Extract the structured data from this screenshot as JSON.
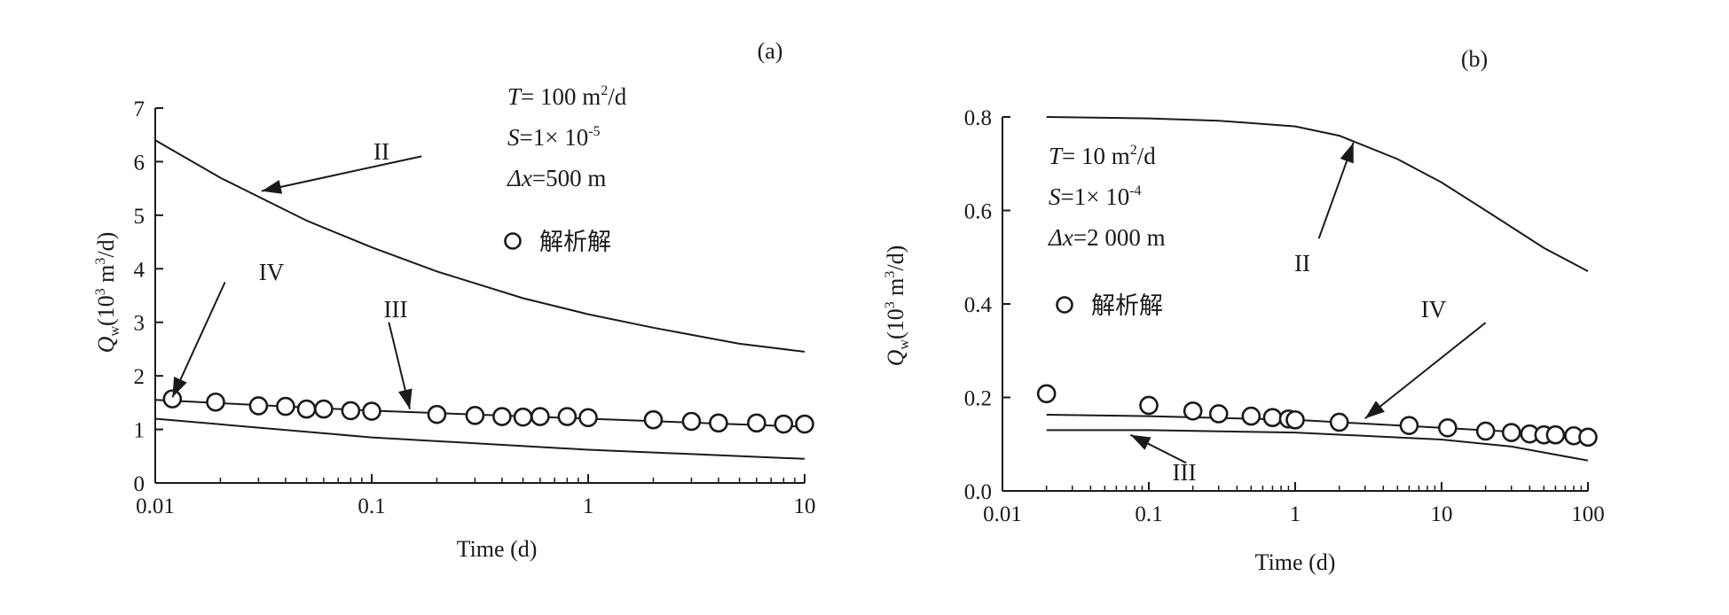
{
  "chart_data": [
    {
      "type": "line",
      "panel_label": "(a)",
      "x_scale": "log",
      "xlim": [
        0.01,
        10
      ],
      "ylim": [
        0,
        7
      ],
      "xticks": [
        0.01,
        0.1,
        1,
        10
      ],
      "xtick_labels": [
        "0.01",
        "0.1",
        "1",
        "10"
      ],
      "yticks": [
        0,
        1,
        2,
        3,
        4,
        5,
        6,
        7
      ],
      "ytick_labels": [
        "0",
        "1",
        "2",
        "3",
        "4",
        "5",
        "6",
        "7"
      ],
      "xlabel": "Time (d)",
      "ylabel": {
        "symbol": "Q",
        "sub": "w",
        "pre": "(10",
        "sup": "3",
        "mid": " m",
        "sup2": "3",
        "post": "/d)"
      },
      "params": [
        {
          "var": "T",
          "text": "= 100 m",
          "sup": "2",
          "tail": "/d"
        },
        {
          "var": "S",
          "text": "=1× 10",
          "sup": "-5",
          "tail": ""
        },
        {
          "var": "Δx",
          "text": "=500 m",
          "sup": "",
          "tail": ""
        }
      ],
      "legend": "解析解",
      "series": [
        {
          "name": "II",
          "x": [
            0.01,
            0.02,
            0.05,
            0.1,
            0.2,
            0.5,
            1,
            2,
            5,
            10
          ],
          "y": [
            6.4,
            5.7,
            4.9,
            4.4,
            3.95,
            3.45,
            3.15,
            2.9,
            2.6,
            2.45
          ]
        },
        {
          "name": "IV",
          "x": [
            0.01,
            0.1,
            1,
            10
          ],
          "y": [
            1.55,
            1.35,
            1.2,
            1.05
          ]
        },
        {
          "name": "III",
          "x": [
            0.01,
            0.1,
            1,
            10
          ],
          "y": [
            1.2,
            0.85,
            0.62,
            0.45
          ]
        }
      ],
      "points": {
        "x": [
          0.012,
          0.019,
          0.03,
          0.04,
          0.05,
          0.06,
          0.08,
          0.1,
          0.2,
          0.3,
          0.4,
          0.5,
          0.6,
          0.8,
          1.0,
          2.0,
          3.0,
          4.0,
          6.0,
          8.0,
          10.0
        ],
        "y": [
          1.57,
          1.51,
          1.44,
          1.43,
          1.38,
          1.38,
          1.35,
          1.34,
          1.28,
          1.26,
          1.24,
          1.23,
          1.24,
          1.24,
          1.22,
          1.18,
          1.15,
          1.12,
          1.12,
          1.1,
          1.1
        ]
      },
      "arrows": [
        {
          "label": "II",
          "tail_x": 0.17,
          "tail_y": 6.1,
          "head_x": 0.031,
          "head_y": 5.45
        },
        {
          "label": "IV",
          "tail_x": 0.021,
          "tail_y": 3.75,
          "head_x": 0.012,
          "head_y": 1.6
        },
        {
          "label": "III",
          "tail_x": 0.12,
          "tail_y": 3.0,
          "head_x": 0.15,
          "head_y": 1.38
        }
      ]
    },
    {
      "type": "line",
      "panel_label": "(b)",
      "x_scale": "log",
      "xlim": [
        0.01,
        100
      ],
      "ylim": [
        0.0,
        0.8
      ],
      "xticks": [
        0.01,
        0.1,
        1,
        10,
        100
      ],
      "xtick_labels": [
        "0.01",
        "0.1",
        "1",
        "10",
        "100"
      ],
      "yticks": [
        0.0,
        0.2,
        0.4,
        0.6,
        0.8
      ],
      "ytick_labels": [
        "0.0",
        "0.2",
        "0.4",
        "0.6",
        "0.8"
      ],
      "xlabel": "Time (d)",
      "ylabel": {
        "symbol": "Q",
        "sub": "w",
        "pre": "(10",
        "sup": "3",
        "mid": " m",
        "sup2": "3",
        "post": "/d)"
      },
      "params": [
        {
          "var": "T",
          "text": "= 10 m",
          "sup": "2",
          "tail": "/d"
        },
        {
          "var": "S",
          "text": "=1× 10",
          "sup": "-4",
          "tail": ""
        },
        {
          "var": "Δx",
          "text": "=2 000 m",
          "sup": "",
          "tail": ""
        }
      ],
      "legend": "解析解",
      "series": [
        {
          "name": "II",
          "x": [
            0.02,
            0.1,
            0.3,
            1,
            2,
            5,
            10,
            20,
            50,
            100
          ],
          "y": [
            0.8,
            0.797,
            0.792,
            0.78,
            0.76,
            0.71,
            0.66,
            0.6,
            0.52,
            0.47
          ]
        },
        {
          "name": "IV",
          "x": [
            0.02,
            0.1,
            1,
            10,
            100
          ],
          "y": [
            0.163,
            0.16,
            0.152,
            0.135,
            0.118
          ]
        },
        {
          "name": "III",
          "x": [
            0.02,
            0.1,
            1,
            10,
            30,
            100
          ],
          "y": [
            0.13,
            0.13,
            0.125,
            0.11,
            0.095,
            0.065
          ]
        }
      ],
      "points": {
        "x": [
          0.02,
          0.1,
          0.2,
          0.3,
          0.5,
          0.7,
          0.9,
          1.0,
          2.0,
          6.0,
          11.0,
          20.0,
          30.0,
          40.0,
          50.0,
          60.0,
          80.0,
          100.0
        ],
        "y": [
          0.208,
          0.183,
          0.171,
          0.165,
          0.16,
          0.157,
          0.154,
          0.152,
          0.147,
          0.14,
          0.135,
          0.128,
          0.125,
          0.122,
          0.12,
          0.12,
          0.118,
          0.115
        ]
      },
      "arrows": [
        {
          "label": "II",
          "tail_x": 1.45,
          "tail_y": 0.54,
          "head_x": 2.5,
          "head_y": 0.745
        },
        {
          "label": "IV",
          "tail_x": 20,
          "tail_y": 0.36,
          "head_x": 3.0,
          "head_y": 0.155
        },
        {
          "label": "III",
          "tail_x": 0.18,
          "tail_y": 0.06,
          "head_x": 0.075,
          "head_y": 0.12
        }
      ]
    }
  ]
}
